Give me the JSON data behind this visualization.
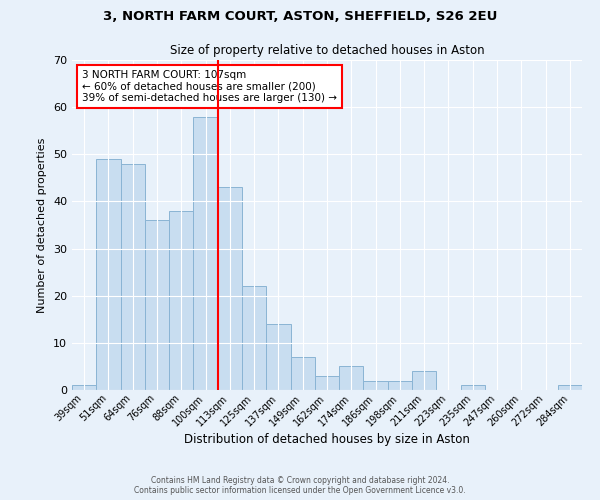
{
  "title": "3, NORTH FARM COURT, ASTON, SHEFFIELD, S26 2EU",
  "subtitle": "Size of property relative to detached houses in Aston",
  "xlabel": "Distribution of detached houses by size in Aston",
  "ylabel": "Number of detached properties",
  "bar_labels": [
    "39sqm",
    "51sqm",
    "64sqm",
    "76sqm",
    "88sqm",
    "100sqm",
    "113sqm",
    "125sqm",
    "137sqm",
    "149sqm",
    "162sqm",
    "174sqm",
    "186sqm",
    "198sqm",
    "211sqm",
    "223sqm",
    "235sqm",
    "247sqm",
    "260sqm",
    "272sqm",
    "284sqm"
  ],
  "bar_values": [
    1,
    49,
    48,
    36,
    38,
    58,
    43,
    22,
    14,
    7,
    3,
    5,
    2,
    2,
    4,
    0,
    1,
    0,
    0,
    0,
    1
  ],
  "bar_color": "#c8ddf0",
  "bar_edge_color": "#8ab4d4",
  "vline_color": "red",
  "vline_index": 5.5,
  "annotation_text": "3 NORTH FARM COURT: 107sqm\n← 60% of detached houses are smaller (200)\n39% of semi-detached houses are larger (130) →",
  "annotation_box_color": "white",
  "annotation_box_edge_color": "red",
  "ylim": [
    0,
    70
  ],
  "yticks": [
    0,
    10,
    20,
    30,
    40,
    50,
    60,
    70
  ],
  "footer_line1": "Contains HM Land Registry data © Crown copyright and database right 2024.",
  "footer_line2": "Contains public sector information licensed under the Open Government Licence v3.0.",
  "bg_color": "#e8f1fa",
  "plot_bg_color": "#e8f1fa"
}
